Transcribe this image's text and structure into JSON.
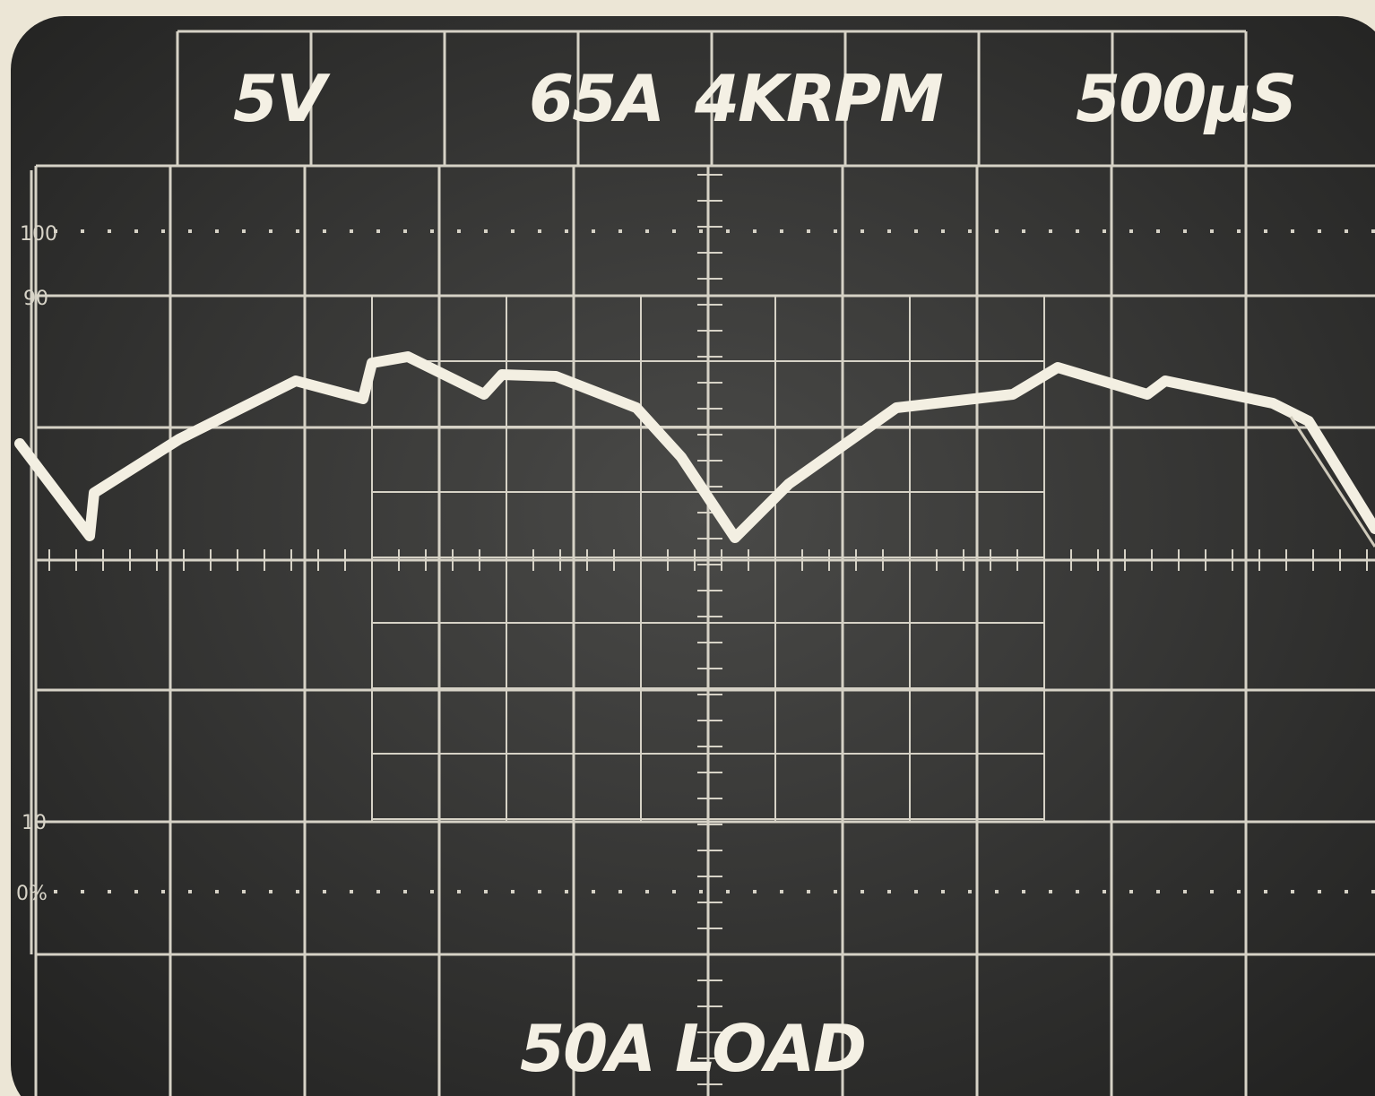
{
  "header": {
    "volts": "5V",
    "current": "65A",
    "speed": "4KRPM",
    "timebase": "500µS"
  },
  "scale": {
    "labels": [
      "100",
      "90",
      "10",
      "0%"
    ]
  },
  "footer": {
    "load": "50A LOAD"
  }
}
